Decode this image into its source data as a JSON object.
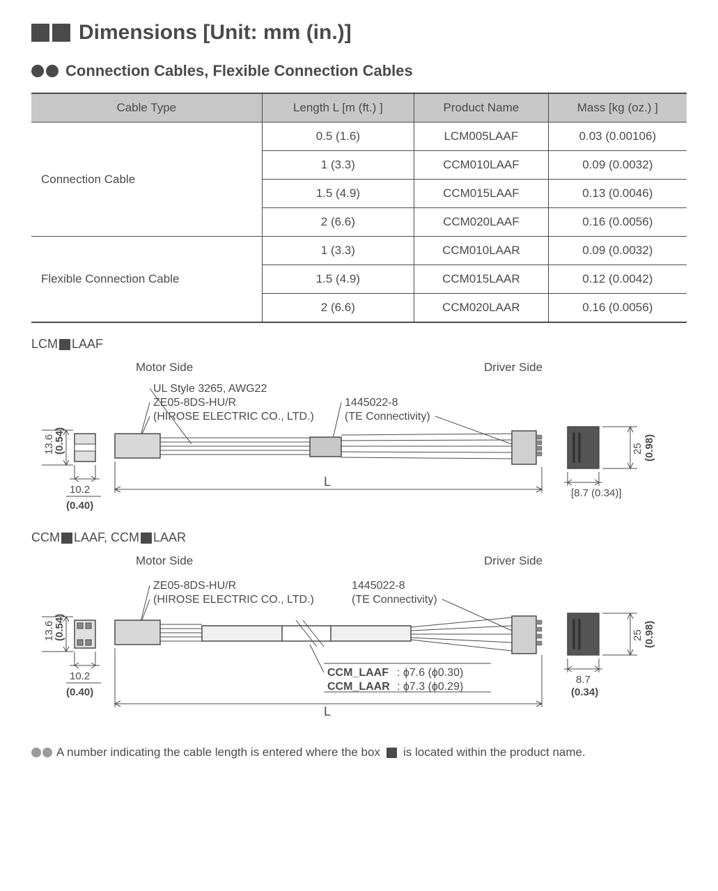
{
  "heading": {
    "title": "Dimensions [Unit: mm (in.)]",
    "bullet_color": "#4a4a4a",
    "bullet_size": 26,
    "title_fontsize": 30
  },
  "subheading": {
    "title": "Connection Cables, Flexible Connection Cables",
    "circle_color": "#4a4a4a",
    "circle_size": 18,
    "title_fontsize": 22
  },
  "table": {
    "header_bg": "#c7c7c7",
    "border_color": "#4a4a4a",
    "text_color": "#4a4a4a",
    "fontsize": 17,
    "columns": [
      "Cable Type",
      "Length  L [m (ft.) ]",
      "Product Name",
      "Mass  [kg (oz.) ]"
    ],
    "groups": [
      {
        "type": "Connection Cable",
        "rows": [
          {
            "length": "0.5 (1.6)",
            "product": "LCM005LAAF",
            "mass": "0.03 (0.00106)"
          },
          {
            "length": "1 (3.3)",
            "product": "CCM010LAAF",
            "mass": "0.09 (0.0032)"
          },
          {
            "length": "1.5 (4.9)",
            "product": "CCM015LAAF",
            "mass": "0.13 (0.0046)"
          },
          {
            "length": "2 (6.6)",
            "product": "CCM020LAAF",
            "mass": "0.16 (0.0056)"
          }
        ]
      },
      {
        "type": "Flexible Connection Cable",
        "rows": [
          {
            "length": "1 (3.3)",
            "product": "CCM010LAAR",
            "mass": "0.09 (0.0032)"
          },
          {
            "length": "1.5 (4.9)",
            "product": "CCM015LAAR",
            "mass": "0.12  (0.0042)"
          },
          {
            "length": "2 (6.6)",
            "product": "CCM020LAAR",
            "mass": "0.16 (0.0056)"
          }
        ]
      }
    ]
  },
  "diagram1": {
    "label_prefix": "LCM",
    "label_suffix": "LAAF",
    "motor_side": "Motor Side",
    "driver_side": "Driver Side",
    "wire_spec": "UL Style 3265, AWG22",
    "motor_conn": "ZE05-8DS-HU/R",
    "motor_mfr": "(HIROSE ELECTRIC CO., LTD.)",
    "driver_conn": "1445022-8",
    "driver_mfr": "(TE Connectivity)",
    "dim_h1": "13.6",
    "dim_h1_in": "(0.54)",
    "dim_w1": "10.2",
    "dim_w1_in": "(0.40)",
    "dim_L": "L",
    "dim_h2": "25",
    "dim_h2_in": "(0.98)",
    "dim_w2": "[8.7 (0.34)]"
  },
  "diagram2": {
    "label_prefix1": "CCM",
    "label_suffix1": "LAAF, CCM",
    "label_suffix2": "LAAR",
    "motor_side": "Motor Side",
    "driver_side": "Driver Side",
    "motor_conn": "ZE05-8DS-HU/R",
    "motor_mfr": "(HIROSE ELECTRIC CO., LTD.)",
    "driver_conn": "1445022-8",
    "driver_mfr": "(TE Connectivity)",
    "dim_h1": "13.6",
    "dim_h1_in": "(0.54)",
    "dim_w1": "10.2",
    "dim_w1_in": "(0.40)",
    "dim_L": "L",
    "dim_h2": "25",
    "dim_h2_in": "(0.98)",
    "dim_w2a": "8.7",
    "dim_w2b": "(0.34)",
    "dia_label1": "CCM_LAAF",
    "dia_val1": ": ϕ7.6 (ϕ0.30)",
    "dia_label2": "CCM_LAAR",
    "dia_val2": ": ϕ7.3 (ϕ0.29)"
  },
  "footnote": {
    "text_before": "A number indicating the cable length is entered where the box",
    "text_after": "is located within the product name.",
    "circle_color": "#9a9a9a"
  }
}
